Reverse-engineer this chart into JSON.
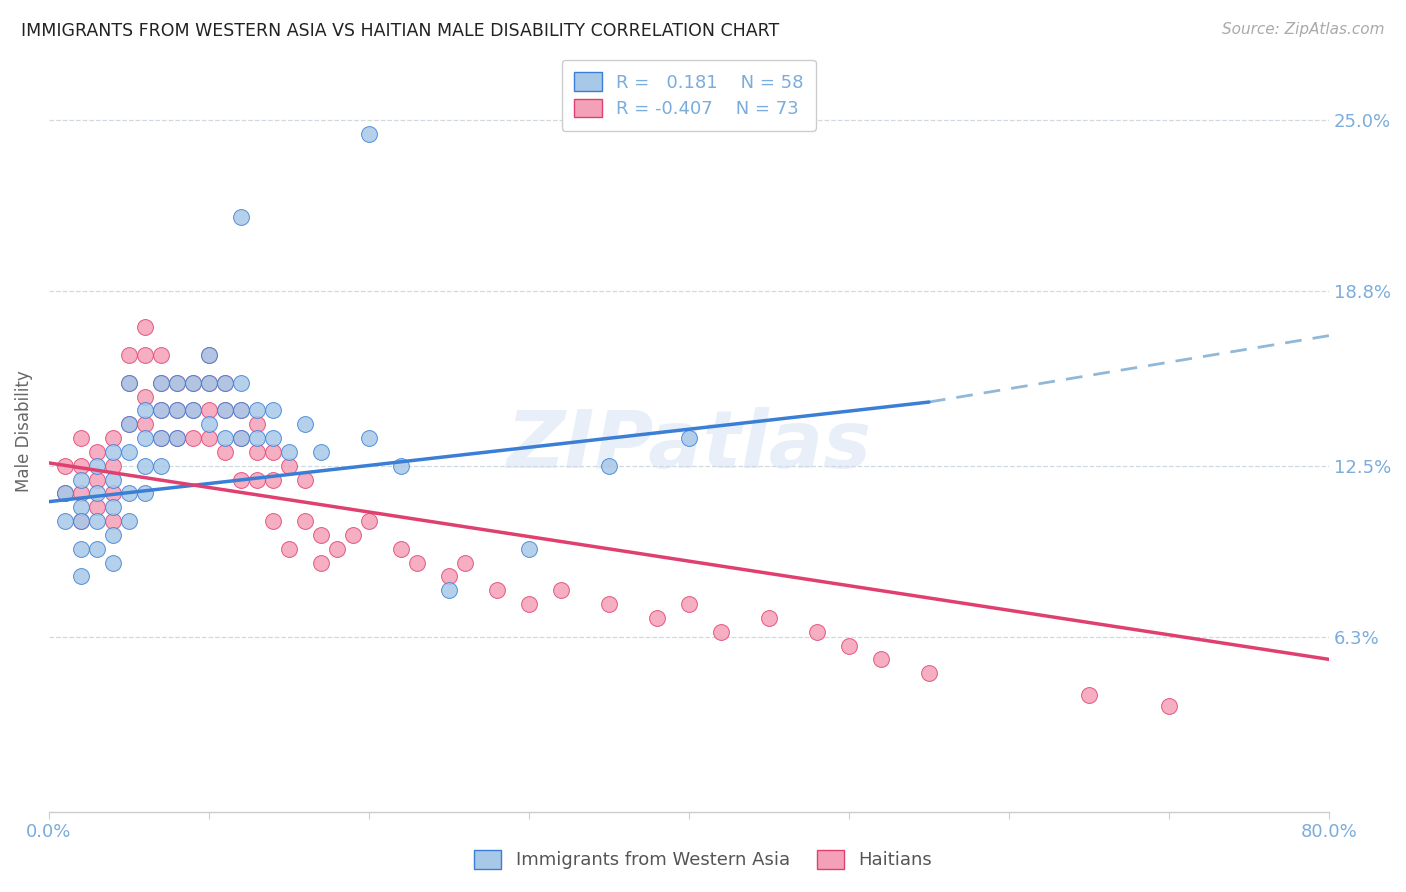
{
  "title": "IMMIGRANTS FROM WESTERN ASIA VS HAITIAN MALE DISABILITY CORRELATION CHART",
  "source": "Source: ZipAtlas.com",
  "ylabel": "Male Disability",
  "yticks": [
    "6.3%",
    "12.5%",
    "18.8%",
    "25.0%"
  ],
  "ytick_vals": [
    0.063,
    0.125,
    0.188,
    0.25
  ],
  "xrange": [
    0.0,
    0.8
  ],
  "yrange": [
    0.0,
    0.275
  ],
  "color_blue": "#a8c8e8",
  "color_pink": "#f4a0b8",
  "line_blue": "#3a7fd5",
  "line_pink": "#e04070",
  "line_dashed_color": "#90b8d8",
  "label_blue": "Immigrants from Western Asia",
  "label_pink": "Haitians",
  "title_color": "#222222",
  "axis_label_color": "#7aacdc",
  "watermark": "ZIPatlas",
  "blue_R": 0.181,
  "blue_N": 58,
  "pink_R": -0.407,
  "pink_N": 73,
  "blue_scatter_x": [
    0.01,
    0.01,
    0.02,
    0.02,
    0.02,
    0.02,
    0.02,
    0.03,
    0.03,
    0.03,
    0.03,
    0.04,
    0.04,
    0.04,
    0.04,
    0.04,
    0.05,
    0.05,
    0.05,
    0.05,
    0.05,
    0.06,
    0.06,
    0.06,
    0.06,
    0.07,
    0.07,
    0.07,
    0.07,
    0.08,
    0.08,
    0.08,
    0.09,
    0.09,
    0.1,
    0.1,
    0.1,
    0.11,
    0.11,
    0.11,
    0.12,
    0.12,
    0.12,
    0.13,
    0.13,
    0.14,
    0.14,
    0.15,
    0.16,
    0.17,
    0.2,
    0.22,
    0.25,
    0.3,
    0.35,
    0.4,
    0.12,
    0.2
  ],
  "blue_scatter_y": [
    0.115,
    0.105,
    0.12,
    0.11,
    0.105,
    0.095,
    0.085,
    0.125,
    0.115,
    0.105,
    0.095,
    0.13,
    0.12,
    0.11,
    0.1,
    0.09,
    0.155,
    0.14,
    0.13,
    0.115,
    0.105,
    0.145,
    0.135,
    0.125,
    0.115,
    0.155,
    0.145,
    0.135,
    0.125,
    0.155,
    0.145,
    0.135,
    0.155,
    0.145,
    0.165,
    0.155,
    0.14,
    0.155,
    0.145,
    0.135,
    0.155,
    0.145,
    0.135,
    0.145,
    0.135,
    0.145,
    0.135,
    0.13,
    0.14,
    0.13,
    0.135,
    0.125,
    0.08,
    0.095,
    0.125,
    0.135,
    0.215,
    0.245
  ],
  "pink_scatter_x": [
    0.01,
    0.01,
    0.02,
    0.02,
    0.02,
    0.02,
    0.03,
    0.03,
    0.03,
    0.04,
    0.04,
    0.04,
    0.04,
    0.05,
    0.05,
    0.05,
    0.06,
    0.06,
    0.06,
    0.06,
    0.07,
    0.07,
    0.07,
    0.07,
    0.08,
    0.08,
    0.08,
    0.09,
    0.09,
    0.09,
    0.1,
    0.1,
    0.1,
    0.1,
    0.11,
    0.11,
    0.11,
    0.12,
    0.12,
    0.12,
    0.13,
    0.13,
    0.13,
    0.14,
    0.14,
    0.14,
    0.15,
    0.15,
    0.16,
    0.16,
    0.17,
    0.17,
    0.18,
    0.19,
    0.2,
    0.22,
    0.23,
    0.25,
    0.26,
    0.28,
    0.3,
    0.32,
    0.35,
    0.38,
    0.4,
    0.42,
    0.45,
    0.48,
    0.5,
    0.52,
    0.55,
    0.65,
    0.7
  ],
  "pink_scatter_y": [
    0.125,
    0.115,
    0.135,
    0.125,
    0.115,
    0.105,
    0.13,
    0.12,
    0.11,
    0.135,
    0.125,
    0.115,
    0.105,
    0.165,
    0.155,
    0.14,
    0.175,
    0.165,
    0.15,
    0.14,
    0.165,
    0.155,
    0.145,
    0.135,
    0.155,
    0.145,
    0.135,
    0.155,
    0.145,
    0.135,
    0.165,
    0.155,
    0.145,
    0.135,
    0.155,
    0.145,
    0.13,
    0.145,
    0.135,
    0.12,
    0.14,
    0.13,
    0.12,
    0.13,
    0.12,
    0.105,
    0.125,
    0.095,
    0.12,
    0.105,
    0.1,
    0.09,
    0.095,
    0.1,
    0.105,
    0.095,
    0.09,
    0.085,
    0.09,
    0.08,
    0.075,
    0.08,
    0.075,
    0.07,
    0.075,
    0.065,
    0.07,
    0.065,
    0.06,
    0.055,
    0.05,
    0.042,
    0.038
  ]
}
